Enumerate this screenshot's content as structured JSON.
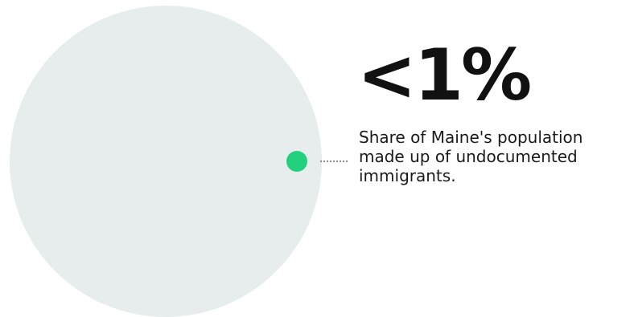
{
  "stat": {
    "value": "<1%",
    "caption": "Share of Maine's population made up of undocumented immigrants."
  },
  "colors": {
    "population_circle": "#e7eded",
    "share_dot": "#23d07d",
    "text": "#111111"
  }
}
